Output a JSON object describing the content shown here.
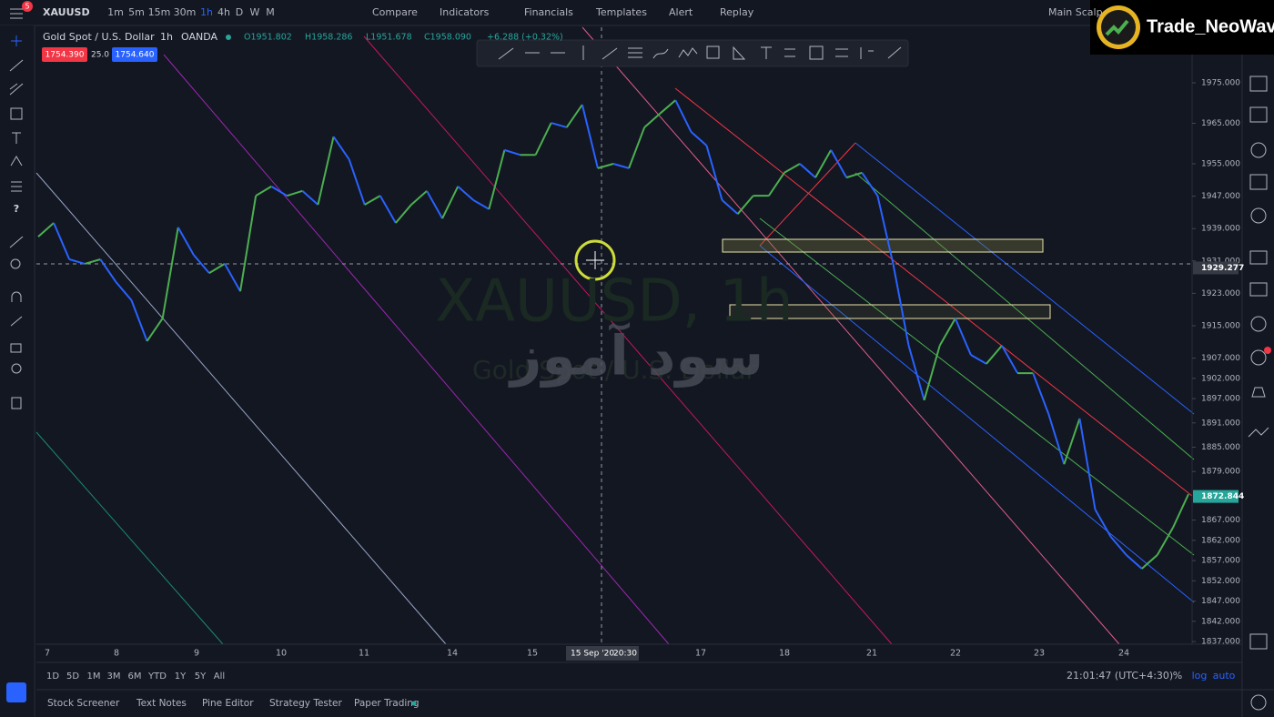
{
  "top_bar": {
    "symbol": "XAUUSD",
    "notification": "5",
    "intervals": [
      "1m",
      "5m",
      "15m",
      "30m",
      "1h",
      "4h",
      "D",
      "W",
      "M"
    ],
    "buttons": [
      "Compare",
      "Indicators",
      "Financials",
      "Templates",
      "Alert",
      "Replay"
    ],
    "layout_name": "Main Scalp"
  },
  "logo": "Trade_NeoWave",
  "legend": {
    "name": "Gold Spot / U.S. Dollar",
    "interval": "1h",
    "exchange": "OANDA",
    "open": "O1951.802",
    "high": "H1958.286",
    "low": "L1951.678",
    "close": "C1958.090",
    "change": "+6.288 (+0.32%)",
    "sell": "1754.390",
    "spread": "25.0",
    "buy": "1754.640"
  },
  "watermark": {
    "symbol": "XAUUSD, 1h",
    "name": "Gold Spot / U.S. Dollar",
    "brand": "سود آموز"
  },
  "chart": {
    "price_scale": [
      "1975.000",
      "1965.000",
      "1955.000",
      "1947.000",
      "1939.000",
      "1931.000",
      "1923.000",
      "1915.000",
      "1907.000",
      "1902.000",
      "1897.000",
      "1891.000",
      "1885.000",
      "1879.000",
      "1867.000",
      "1862.000",
      "1857.000",
      "1852.000",
      "1847.000",
      "1842.000",
      "1837.000"
    ],
    "crosshair_price": "1929.277",
    "last_price": "1872.844",
    "time_scale": [
      "7",
      "8",
      "9",
      "10",
      "11",
      "14",
      "15",
      "17",
      "18",
      "21",
      "22",
      "23",
      "24"
    ],
    "crosshair_time": "15 Sep '20",
    "crosshair_clock": "20:30",
    "price_path": [
      1937.0,
      1940.4,
      1931.4,
      1930.3,
      1931.4,
      1925.8,
      1921.3,
      1911.2,
      1916.8,
      1939.3,
      1932.5,
      1928.0,
      1930.3,
      1923.5,
      1947.1,
      1949.4,
      1947.1,
      1948.3,
      1944.9,
      1961.7,
      1956.1,
      1944.9,
      1947.1,
      1940.4,
      1944.9,
      1948.3,
      1941.5,
      1949.4,
      1946.0,
      1943.8,
      1958.4,
      1957.2,
      1957.2,
      1965.1,
      1964.0,
      1969.6,
      1953.9,
      1955.0,
      1953.9,
      1964.0,
      1967.4,
      1970.7,
      1962.9,
      1959.5,
      1946.0,
      1942.6,
      1947.1,
      1947.1,
      1952.8,
      1955.0,
      1951.6,
      1958.4,
      1951.6,
      1952.8,
      1947.1,
      1930.3,
      1910.1,
      1896.6,
      1910.1,
      1916.8,
      1907.8,
      1905.6,
      1910.1,
      1903.3,
      1903.3,
      1893.2,
      1880.8,
      1892.1,
      1869.6,
      1862.9,
      1858.4,
      1855.0,
      1858.4,
      1865.1,
      1873.4
    ]
  },
  "bottom_bar": {
    "ranges": [
      "1D",
      "5D",
      "1M",
      "3M",
      "6M",
      "YTD",
      "1Y",
      "5Y",
      "All"
    ],
    "clock": "21:01:47 (UTC+4:30)",
    "percent": "%",
    "log": "log",
    "auto": "auto"
  },
  "tabs": [
    "Stock Screener",
    "Text Notes",
    "Pine Editor",
    "Strategy Tester",
    "Paper Trading"
  ]
}
